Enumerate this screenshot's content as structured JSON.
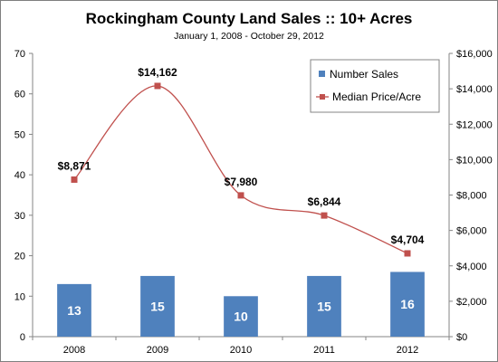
{
  "chart_data": {
    "type": "bar",
    "title": "Rockingham County Land Sales :: 10+ Acres",
    "subtitle": "January 1, 2008 - October 29, 2012",
    "categories": [
      "2008",
      "2009",
      "2010",
      "2011",
      "2012"
    ],
    "series": [
      {
        "name": "Number Sales",
        "type": "bar",
        "axis": "left",
        "values": [
          13,
          15,
          10,
          15,
          16
        ],
        "labels": [
          "13",
          "15",
          "10",
          "15",
          "16"
        ],
        "color": "#4f81bd"
      },
      {
        "name": "Median Price/Acre",
        "type": "line",
        "smooth": true,
        "axis": "right",
        "values": [
          8871,
          14162,
          7980,
          6844,
          4704
        ],
        "labels": [
          "$8,871",
          "$14,162",
          "$7,980",
          "$6,844",
          "$4,704"
        ],
        "color": "#c0504d"
      }
    ],
    "y_left": {
      "ylim": [
        0,
        70
      ],
      "ticks": [
        0,
        10,
        20,
        30,
        40,
        50,
        60,
        70
      ],
      "tick_labels": [
        "0",
        "10",
        "20",
        "30",
        "40",
        "50",
        "60",
        "70"
      ]
    },
    "y_right": {
      "ylim": [
        0,
        16000
      ],
      "ticks": [
        0,
        2000,
        4000,
        6000,
        8000,
        10000,
        12000,
        14000,
        16000
      ],
      "tick_labels": [
        "$0",
        "$2,000",
        "$4,000",
        "$6,000",
        "$8,000",
        "$10,000",
        "$12,000",
        "$14,000",
        "$16,000"
      ]
    },
    "grid": false,
    "legend": "top-right"
  }
}
